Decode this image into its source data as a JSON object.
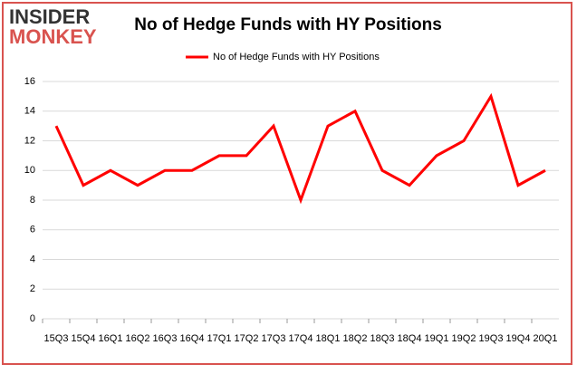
{
  "logo": {
    "line1": "INSIDER",
    "line2": "MONKEY"
  },
  "chart_data": {
    "type": "line",
    "title": "No of Hedge Funds with HY Positions",
    "categories": [
      "15Q3",
      "15Q4",
      "16Q1",
      "16Q2",
      "16Q3",
      "16Q4",
      "17Q1",
      "17Q2",
      "17Q3",
      "17Q4",
      "18Q1",
      "18Q2",
      "18Q3",
      "18Q4",
      "19Q1",
      "19Q2",
      "19Q3",
      "19Q4",
      "20Q1"
    ],
    "series": [
      {
        "name": "No of Hedge Funds with HY Positions",
        "color": "#ff0000",
        "values": [
          13,
          9,
          10,
          9,
          10,
          10,
          11,
          11,
          13,
          8,
          13,
          14,
          10,
          9,
          11,
          12,
          15,
          9,
          10
        ]
      }
    ],
    "ylim": [
      0,
      16
    ],
    "yticks": [
      0,
      2,
      4,
      6,
      8,
      10,
      12,
      14,
      16
    ],
    "grid": true,
    "legend": "top"
  }
}
